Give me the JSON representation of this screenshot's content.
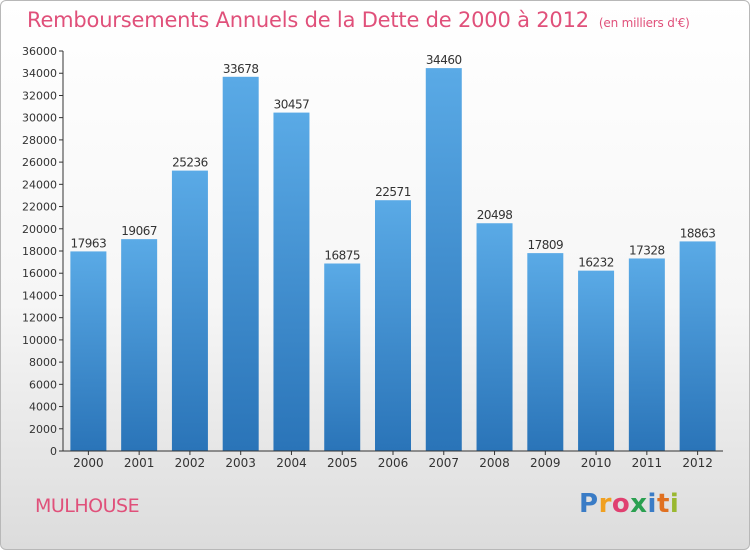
{
  "header": {
    "title": "Remboursements Annuels de la Dette de 2000 à 2012",
    "unit": "(en milliers d'€)"
  },
  "footer": {
    "city": "MULHOUSE",
    "logo": "Proxiti"
  },
  "colors": {
    "bar_top": "#5aaae6",
    "bar_bottom": "#2a74b8",
    "title": "#e0507a"
  },
  "chart_data": {
    "type": "bar",
    "title": "Remboursements Annuels de la Dette de 2000 à 2012",
    "categories": [
      "2000",
      "2001",
      "2002",
      "2003",
      "2004",
      "2005",
      "2006",
      "2007",
      "2008",
      "2009",
      "2010",
      "2011",
      "2012"
    ],
    "values": [
      17963,
      19067,
      25236,
      33678,
      30457,
      16875,
      22571,
      34460,
      20498,
      17809,
      16232,
      17328,
      18863
    ],
    "ylim": [
      0,
      36000
    ],
    "yticks": [
      0,
      2000,
      4000,
      6000,
      8000,
      10000,
      12000,
      14000,
      16000,
      18000,
      20000,
      22000,
      24000,
      26000,
      28000,
      30000,
      32000,
      34000,
      36000
    ],
    "grid": false,
    "data_labels": true
  }
}
